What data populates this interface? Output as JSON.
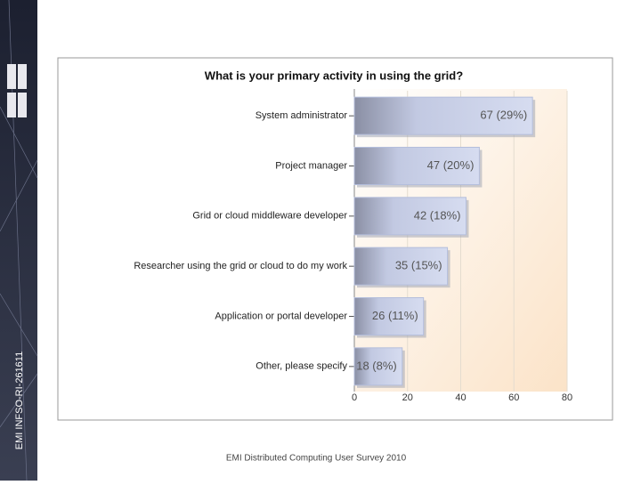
{
  "slide": {
    "side_label": "EMI INFSO-RI-261611",
    "footer": "EMI Distributed Computing User Survey 2010"
  },
  "chart_data": {
    "type": "bar",
    "orientation": "horizontal",
    "title": "What is your primary activity in using the grid?",
    "categories": [
      "System administrator",
      "Project manager",
      "Grid or cloud middleware developer",
      "Researcher using the grid or cloud to do my work",
      "Application or portal developer",
      "Other, please specify"
    ],
    "values": [
      67,
      47,
      42,
      35,
      26,
      18
    ],
    "value_labels": [
      "67 (29%)",
      "47 (20%)",
      "42 (18%)",
      "35 (15%)",
      "26 (11%)",
      "18 (8%)"
    ],
    "color": "#b4bedc",
    "xlim": [
      0,
      80
    ],
    "xticks": [
      0,
      20,
      40,
      60,
      80
    ],
    "grid": true
  }
}
